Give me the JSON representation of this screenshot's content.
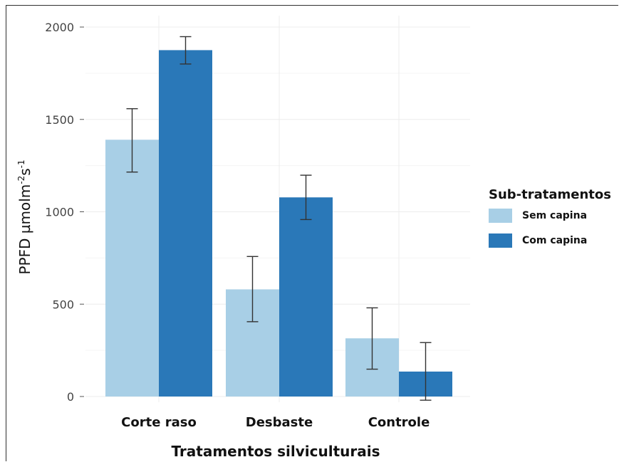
{
  "chart_data": {
    "type": "bar",
    "xlabel": "Tratamentos silviculturais",
    "ylabel": "PPFD µmolm",
    "ylabel_sup1": "-2",
    "ylabel_mid": "s",
    "ylabel_sup2": "-1",
    "ylim": [
      0,
      2050
    ],
    "yticks": [
      0,
      500,
      1000,
      1500,
      2000
    ],
    "ytick_labels": [
      "0",
      "500",
      "1000",
      "1500",
      "2000"
    ],
    "grid": true,
    "legend_position": "right",
    "legend_title": "Sub-tratamentos",
    "categories": [
      "Corte raso",
      "Desbaste",
      "Controle"
    ],
    "series": [
      {
        "name": "Sem capina",
        "color": "#a8cfe6",
        "values": [
          1390,
          580,
          315
        ],
        "err_low": [
          1215,
          405,
          148
        ],
        "err_high": [
          1558,
          758,
          480
        ]
      },
      {
        "name": "Com capina",
        "color": "#2a78b8",
        "values": [
          1875,
          1078,
          135
        ],
        "err_low": [
          1800,
          958,
          -20
        ],
        "err_high": [
          1948,
          1198,
          292
        ]
      }
    ]
  }
}
